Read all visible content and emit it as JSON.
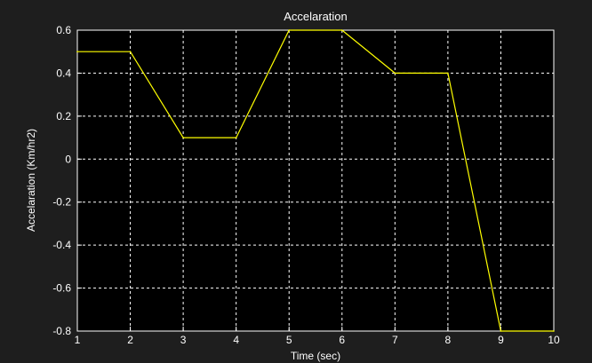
{
  "chart_data": {
    "type": "line",
    "title": "Accelaration",
    "xlabel": "Time (sec)",
    "ylabel": "Accelaration (Km/hr2)",
    "xlim": [
      1,
      10
    ],
    "ylim": [
      -0.8,
      0.6
    ],
    "x_ticks": [
      "1",
      "2",
      "3",
      "4",
      "5",
      "6",
      "7",
      "8",
      "9",
      "10"
    ],
    "y_ticks": [
      "0.6",
      "0.4",
      "0.2",
      "0",
      "-0.2",
      "-0.4",
      "-0.6",
      "-0.8"
    ],
    "grid": true,
    "series": [
      {
        "x": [
          1,
          2,
          3,
          4,
          5,
          6,
          7,
          8,
          9,
          10
        ],
        "y": [
          0.5,
          0.5,
          0.1,
          0.1,
          0.6,
          0.6,
          0.4,
          0.4,
          -0.8,
          -0.8
        ]
      }
    ],
    "colors": {
      "background": "#1e1e1e",
      "plot_area": "#000000",
      "line": "#ffff00",
      "grid": "#ffffff",
      "text": "#ffffff"
    }
  }
}
